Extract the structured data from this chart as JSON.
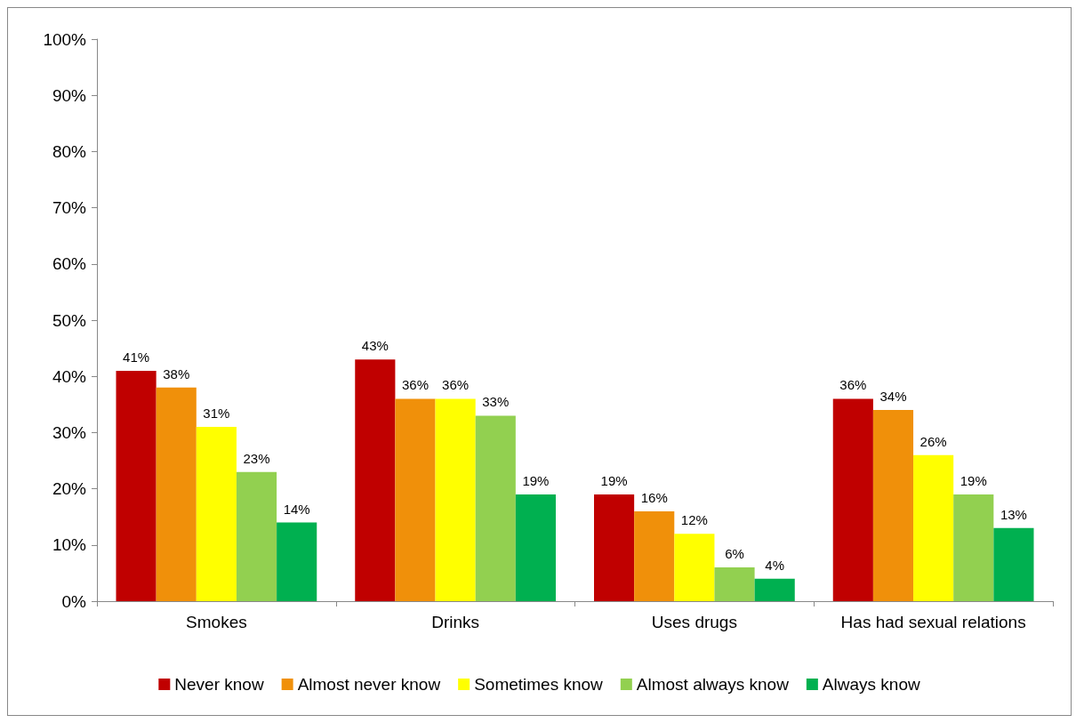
{
  "chart_data": {
    "type": "bar",
    "categories": [
      "Smokes",
      "Drinks",
      "Uses drugs",
      "Has had sexual relations"
    ],
    "series": [
      {
        "name": "Never know",
        "color": "#c00000",
        "values": [
          41,
          43,
          19,
          36
        ],
        "value_labels": [
          "41%",
          "43%",
          "19%",
          "36%"
        ]
      },
      {
        "name": "Almost never know",
        "color": "#f0900a",
        "values": [
          38,
          36,
          16,
          34
        ],
        "value_labels": [
          "38%",
          "36%",
          "16%",
          "34%"
        ]
      },
      {
        "name": "Sometimes know",
        "color": "#ffff00",
        "values": [
          31,
          36,
          12,
          26
        ],
        "value_labels": [
          "31%",
          "36%",
          "12%",
          "26%"
        ]
      },
      {
        "name": "Almost always know",
        "color": "#92d050",
        "values": [
          23,
          33,
          6,
          19
        ],
        "value_labels": [
          "23%",
          "33%",
          "6%",
          "19%"
        ]
      },
      {
        "name": "Always know",
        "color": "#00b050",
        "values": [
          14,
          19,
          4,
          13
        ],
        "value_labels": [
          "14%",
          "19%",
          "4%",
          "13%"
        ]
      }
    ],
    "ylim": [
      0,
      100
    ],
    "yticks": [
      {
        "value": 0,
        "label": "0%"
      },
      {
        "value": 10,
        "label": "10%"
      },
      {
        "value": 20,
        "label": "20%"
      },
      {
        "value": 30,
        "label": "30%"
      },
      {
        "value": 40,
        "label": "40%"
      },
      {
        "value": 50,
        "label": "50%"
      },
      {
        "value": 60,
        "label": "60%"
      },
      {
        "value": 70,
        "label": "70%"
      },
      {
        "value": 80,
        "label": "80%"
      },
      {
        "value": 90,
        "label": "90%"
      },
      {
        "value": 100,
        "label": "100%"
      }
    ],
    "grid": false,
    "legend": "bottom"
  }
}
